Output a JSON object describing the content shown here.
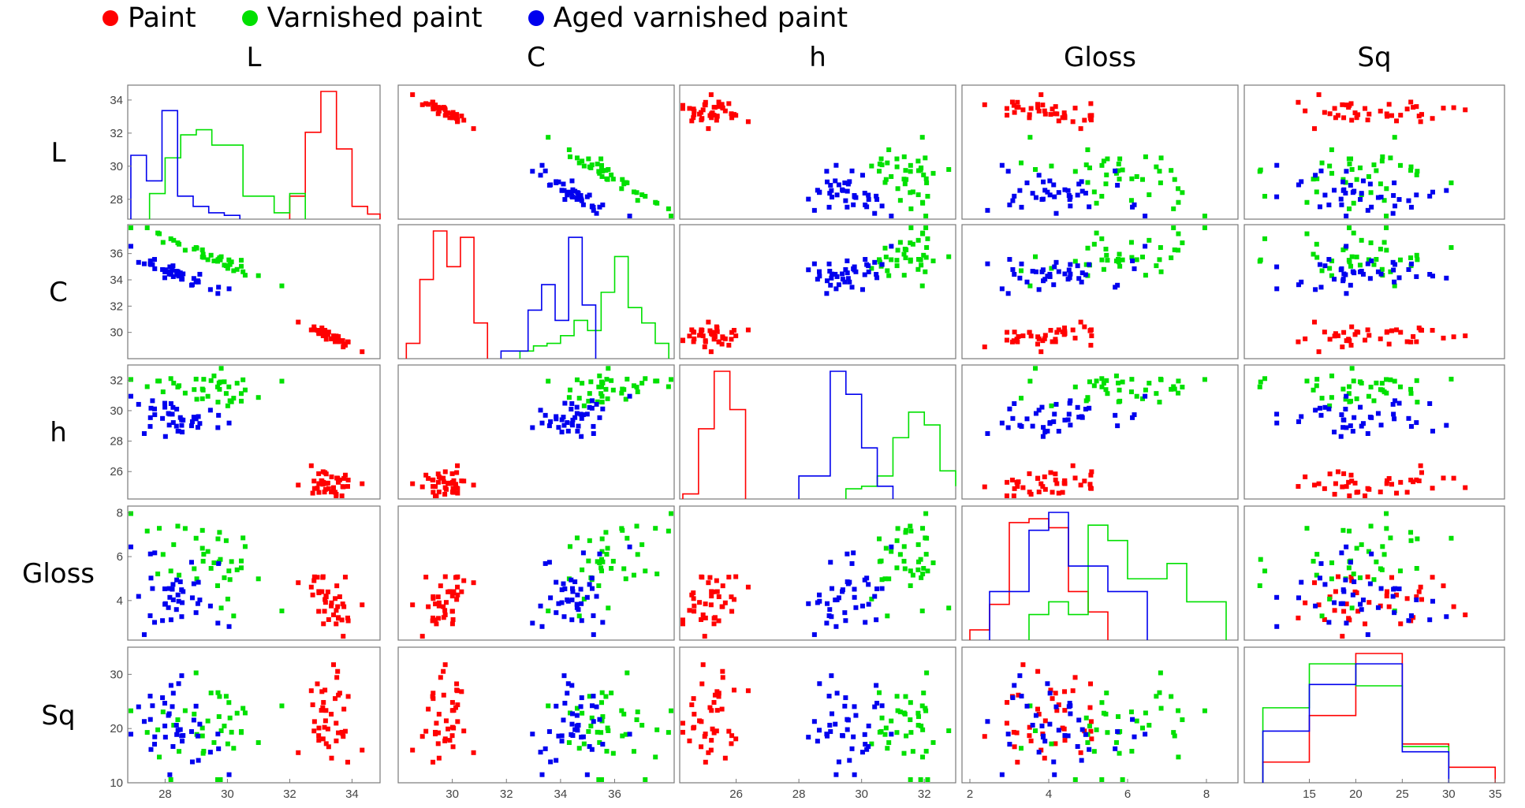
{
  "legend": [
    {
      "label": "Paint",
      "color": "#ff0000"
    },
    {
      "label": "Varnished paint",
      "color": "#00e000"
    },
    {
      "label": "Aged varnished paint",
      "color": "#0000ee"
    }
  ],
  "chart_data": {
    "type": "scatter-matrix",
    "variables": [
      "L",
      "C",
      "h",
      "Gloss",
      "Sq"
    ],
    "diagonal": "histogram",
    "axes": {
      "L": {
        "range": [
          26.8,
          34.9
        ],
        "ticks": [
          28,
          30,
          32,
          34
        ]
      },
      "C": {
        "range": [
          28.0,
          38.2
        ],
        "ticks": [
          30,
          32,
          34,
          36
        ]
      },
      "h": {
        "range": [
          24.2,
          33.0
        ],
        "ticks": [
          26,
          28,
          30,
          32
        ]
      },
      "Gloss": {
        "range": [
          2.2,
          8.3
        ],
        "ticks": [
          4,
          6,
          8
        ]
      },
      "Sq": {
        "range": [
          10.0,
          35.0
        ],
        "ticks": [
          10,
          20,
          30
        ]
      }
    },
    "x_axes": {
      "L": {
        "range": [
          26.8,
          34.9
        ],
        "ticks": [
          28,
          30,
          32,
          34
        ]
      },
      "C": {
        "range": [
          28.0,
          38.2
        ],
        "ticks": [
          30,
          32,
          34,
          36
        ]
      },
      "h": {
        "range": [
          24.2,
          33.0
        ],
        "ticks": [
          26,
          28,
          30,
          32
        ]
      },
      "Gloss": {
        "range": [
          1.8,
          8.8
        ],
        "ticks": [
          2,
          4,
          6,
          8
        ]
      },
      "Sq": {
        "range": [
          8,
          36
        ],
        "ticks": [
          15,
          20,
          25,
          30,
          35
        ]
      }
    },
    "groups": [
      {
        "name": "Paint",
        "color": "#ff0000",
        "stats": {
          "L": {
            "mean": 33.2,
            "sd": 0.45
          },
          "C": {
            "mean": 29.8,
            "sd": 0.55
          },
          "h": {
            "mean": 25.3,
            "sd": 0.45
          },
          "Gloss": {
            "mean": 4.0,
            "sd": 0.75
          },
          "Sq": {
            "mean": 22.0,
            "sd": 5.0
          }
        },
        "hist": {
          "L": {
            "bins": [
              32.0,
              32.5,
              33.0,
              33.5,
              34.0,
              34.5,
              34.9
            ],
            "heights": [
              0.18,
              0.68,
              1.0,
              0.55,
              0.1,
              0.04
            ]
          },
          "C": {
            "bins": [
              28.3,
              28.8,
              29.3,
              29.8,
              30.3,
              30.8,
              31.3
            ],
            "heights": [
              0.12,
              0.62,
              1.0,
              0.72,
              0.95,
              0.28
            ]
          },
          "h": {
            "bins": [
              24.3,
              24.8,
              25.3,
              25.8,
              26.3
            ],
            "heights": [
              0.04,
              0.55,
              1.0,
              0.7
            ]
          },
          "Gloss": {
            "bins": [
              2.0,
              2.5,
              3.0,
              3.5,
              4.0,
              4.5,
              5.0,
              5.5
            ],
            "heights": [
              0.08,
              0.28,
              0.92,
              0.95,
              0.88,
              0.38,
              0.22
            ]
          },
          "Sq": {
            "bins": [
              10,
              15,
              20,
              25,
              30,
              35
            ],
            "heights": [
              0.16,
              0.52,
              1.0,
              0.3,
              0.12
            ]
          }
        }
      },
      {
        "name": "Varnished paint",
        "color": "#00e000",
        "stats": {
          "L": {
            "mean": 29.5,
            "sd": 1.0
          },
          "C": {
            "mean": 35.8,
            "sd": 1.0
          },
          "h": {
            "mean": 31.4,
            "sd": 0.55
          },
          "Gloss": {
            "mean": 5.8,
            "sd": 1.1
          },
          "Sq": {
            "mean": 20.0,
            "sd": 4.5
          }
        },
        "hist": {
          "L": {
            "bins": [
              27.5,
              28.0,
              28.5,
              29.0,
              29.5,
              30.0,
              30.5,
              31.0,
              31.5,
              32.0,
              32.5
            ],
            "heights": [
              0.2,
              0.48,
              0.66,
              0.7,
              0.58,
              0.58,
              0.18,
              0.18,
              0.05,
              0.2
            ]
          },
          "C": {
            "bins": [
              32.5,
              33.0,
              33.5,
              34.0,
              34.5,
              35.0,
              35.5,
              36.0,
              36.5,
              37.0,
              37.5,
              38.0
            ],
            "heights": [
              0.06,
              0.1,
              0.12,
              0.18,
              0.3,
              0.22,
              0.52,
              0.8,
              0.4,
              0.28,
              0.12
            ]
          },
          "h": {
            "bins": [
              29.5,
              30.0,
              30.5,
              31.0,
              31.5,
              32.0,
              32.5,
              33.0
            ],
            "heights": [
              0.08,
              0.1,
              0.18,
              0.48,
              0.68,
              0.58,
              0.22,
              0.1
            ]
          },
          "Gloss": {
            "bins": [
              3.5,
              4.0,
              4.5,
              5.0,
              5.5,
              6.0,
              6.5,
              7.0,
              7.5,
              8.0,
              8.5
            ],
            "heights": [
              0.2,
              0.3,
              0.2,
              0.9,
              0.78,
              0.48,
              0.48,
              0.6,
              0.3,
              0.3
            ]
          },
          "Sq": {
            "bins": [
              10,
              15,
              20,
              25,
              30
            ],
            "heights": [
              0.58,
              0.92,
              0.75,
              0.28
            ]
          }
        }
      },
      {
        "name": "Aged varnished paint",
        "color": "#0000ee",
        "stats": {
          "L": {
            "mean": 28.3,
            "sd": 0.8
          },
          "C": {
            "mean": 34.5,
            "sd": 0.75
          },
          "h": {
            "mean": 29.5,
            "sd": 0.6
          },
          "Gloss": {
            "mean": 4.4,
            "sd": 0.9
          },
          "Sq": {
            "mean": 20.5,
            "sd": 4.5
          }
        },
        "hist": {
          "L": {
            "bins": [
              26.9,
              27.4,
              27.9,
              28.4,
              28.9,
              29.4,
              29.9,
              30.4
            ],
            "heights": [
              0.5,
              0.3,
              0.85,
              0.18,
              0.1,
              0.05,
              0.03
            ]
          },
          "C": {
            "bins": [
              31.8,
              32.3,
              32.8,
              33.3,
              33.8,
              34.3,
              34.8,
              35.3
            ],
            "heights": [
              0.06,
              0.06,
              0.38,
              0.58,
              0.3,
              0.95,
              0.42
            ]
          },
          "h": {
            "bins": [
              28.0,
              28.5,
              29.0,
              29.5,
              30.0,
              30.5,
              31.0
            ],
            "heights": [
              0.18,
              0.18,
              1.0,
              0.82,
              0.4,
              0.1
            ]
          },
          "Gloss": {
            "bins": [
              2.5,
              3.0,
              3.5,
              4.0,
              4.5,
              5.0,
              5.5,
              6.0,
              6.5
            ],
            "heights": [
              0.38,
              0.38,
              0.86,
              1.0,
              0.58,
              0.58,
              0.38,
              0.38
            ]
          },
          "Sq": {
            "bins": [
              10,
              15,
              20,
              25,
              30
            ],
            "heights": [
              0.4,
              0.76,
              0.92,
              0.24
            ]
          }
        }
      }
    ],
    "sample_size_per_group": 40,
    "legend_position": "top-left"
  }
}
